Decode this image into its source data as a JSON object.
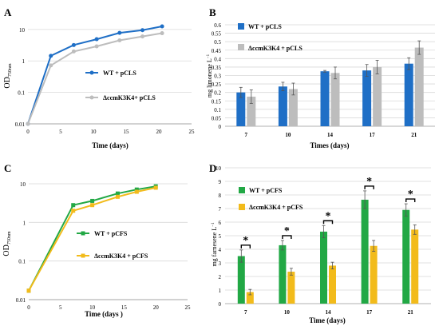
{
  "chart_data": [
    {
      "panel": "A",
      "type": "line",
      "xlabel": "Time (days)",
      "ylabel_main": "OD",
      "ylabel_sub": "750nm",
      "yscale": "log",
      "ylim": [
        0.01,
        20
      ],
      "xlim": [
        0,
        25
      ],
      "x_ticks": [
        "0",
        "5",
        "10",
        "15",
        "20",
        "25"
      ],
      "y_ticks": [
        "0.01",
        "0.1",
        "1",
        "10"
      ],
      "grid": "horizontal",
      "series": [
        {
          "name": "WT + pCLS",
          "x": [
            0,
            3.5,
            7,
            10.5,
            14,
            17.5,
            20.5
          ],
          "y": [
            0.01,
            1.45,
            3.2,
            4.9,
            7.8,
            9.5,
            12.5
          ]
        },
        {
          "name": "ΔccmK3K4+ pCLS",
          "x": [
            0,
            3.5,
            7,
            10.5,
            14,
            17.5,
            20.5
          ],
          "y": [
            0.01,
            0.72,
            2.0,
            2.9,
            4.5,
            6.0,
            7.6
          ]
        }
      ],
      "colors": [
        "#1f6fc6",
        "#bdbdbd"
      ]
    },
    {
      "panel": "B",
      "type": "bar",
      "xlabel": "Times (days)",
      "ylabel": "mg limonene L",
      "ylabel_sup": "−1",
      "ylim": [
        0,
        0.6
      ],
      "y_ticks": [
        "0",
        "0.05",
        "0.1",
        "0.15",
        "0.2",
        "0.25",
        "0.3",
        "0.35",
        "0.4",
        "0.45",
        "0.5",
        "0.55",
        "0.6"
      ],
      "categories": [
        "7",
        "10",
        "14",
        "17",
        "21"
      ],
      "grid": "horizontal",
      "series": [
        {
          "name": "WT + pCLS",
          "values": [
            0.2,
            0.235,
            0.325,
            0.33,
            0.37
          ],
          "errors": [
            0.03,
            0.025,
            0.005,
            0.035,
            0.035
          ]
        },
        {
          "name": "ΔccmK3K4 + pCLS",
          "values": [
            0.175,
            0.22,
            0.315,
            0.35,
            0.465
          ],
          "errors": [
            0.04,
            0.035,
            0.035,
            0.04,
            0.04
          ]
        }
      ],
      "colors": [
        "#1f6fc6",
        "#bdbdbd"
      ]
    },
    {
      "panel": "C",
      "type": "line",
      "xlabel": "Time (days )",
      "ylabel_main": "OD",
      "ylabel_sub": "750nm",
      "yscale": "log",
      "ylim": [
        0.01,
        10
      ],
      "xlim": [
        0,
        25
      ],
      "x_ticks": [
        "0",
        "5",
        "10",
        "15",
        "20",
        "25"
      ],
      "y_ticks": [
        "0.01",
        "0.1",
        "1",
        "10"
      ],
      "grid": "horizontal",
      "series": [
        {
          "name": "WT + pCFS",
          "x": [
            0,
            7,
            10,
            14,
            17,
            20
          ],
          "y": [
            0.017,
            2.8,
            3.6,
            5.6,
            7.1,
            8.6
          ]
        },
        {
          "name": "ΔccmK3K4 + pCFS",
          "x": [
            0,
            7,
            10,
            14,
            17,
            20
          ],
          "y": [
            0.017,
            2.0,
            2.8,
            4.6,
            6.2,
            7.9
          ]
        }
      ],
      "colors": [
        "#22a845",
        "#f2bb1b"
      ]
    },
    {
      "panel": "D",
      "type": "bar",
      "xlabel": "Time (days)",
      "ylabel": "mg farnesene L",
      "ylabel_sup": "−1",
      "ylim": [
        0,
        10
      ],
      "y_ticks": [
        "0",
        "1",
        "2",
        "3",
        "4",
        "5",
        "6",
        "7",
        "8",
        "9",
        "10"
      ],
      "categories": [
        "7",
        "10",
        "14",
        "17",
        "21"
      ],
      "grid": "horizontal",
      "series": [
        {
          "name": "WT + pCFS",
          "values": [
            3.5,
            4.3,
            5.3,
            7.65,
            6.9
          ],
          "errors": [
            0.45,
            0.35,
            0.45,
            0.65,
            0.45
          ]
        },
        {
          "name": "ΔccmK3K4 + pCFS",
          "values": [
            0.85,
            2.35,
            2.8,
            4.25,
            5.45
          ],
          "errors": [
            0.2,
            0.25,
            0.25,
            0.4,
            0.35
          ]
        }
      ],
      "significance": [
        "*",
        "*",
        "*",
        "*",
        "*"
      ],
      "colors": [
        "#22a845",
        "#f2bb1b"
      ]
    }
  ]
}
